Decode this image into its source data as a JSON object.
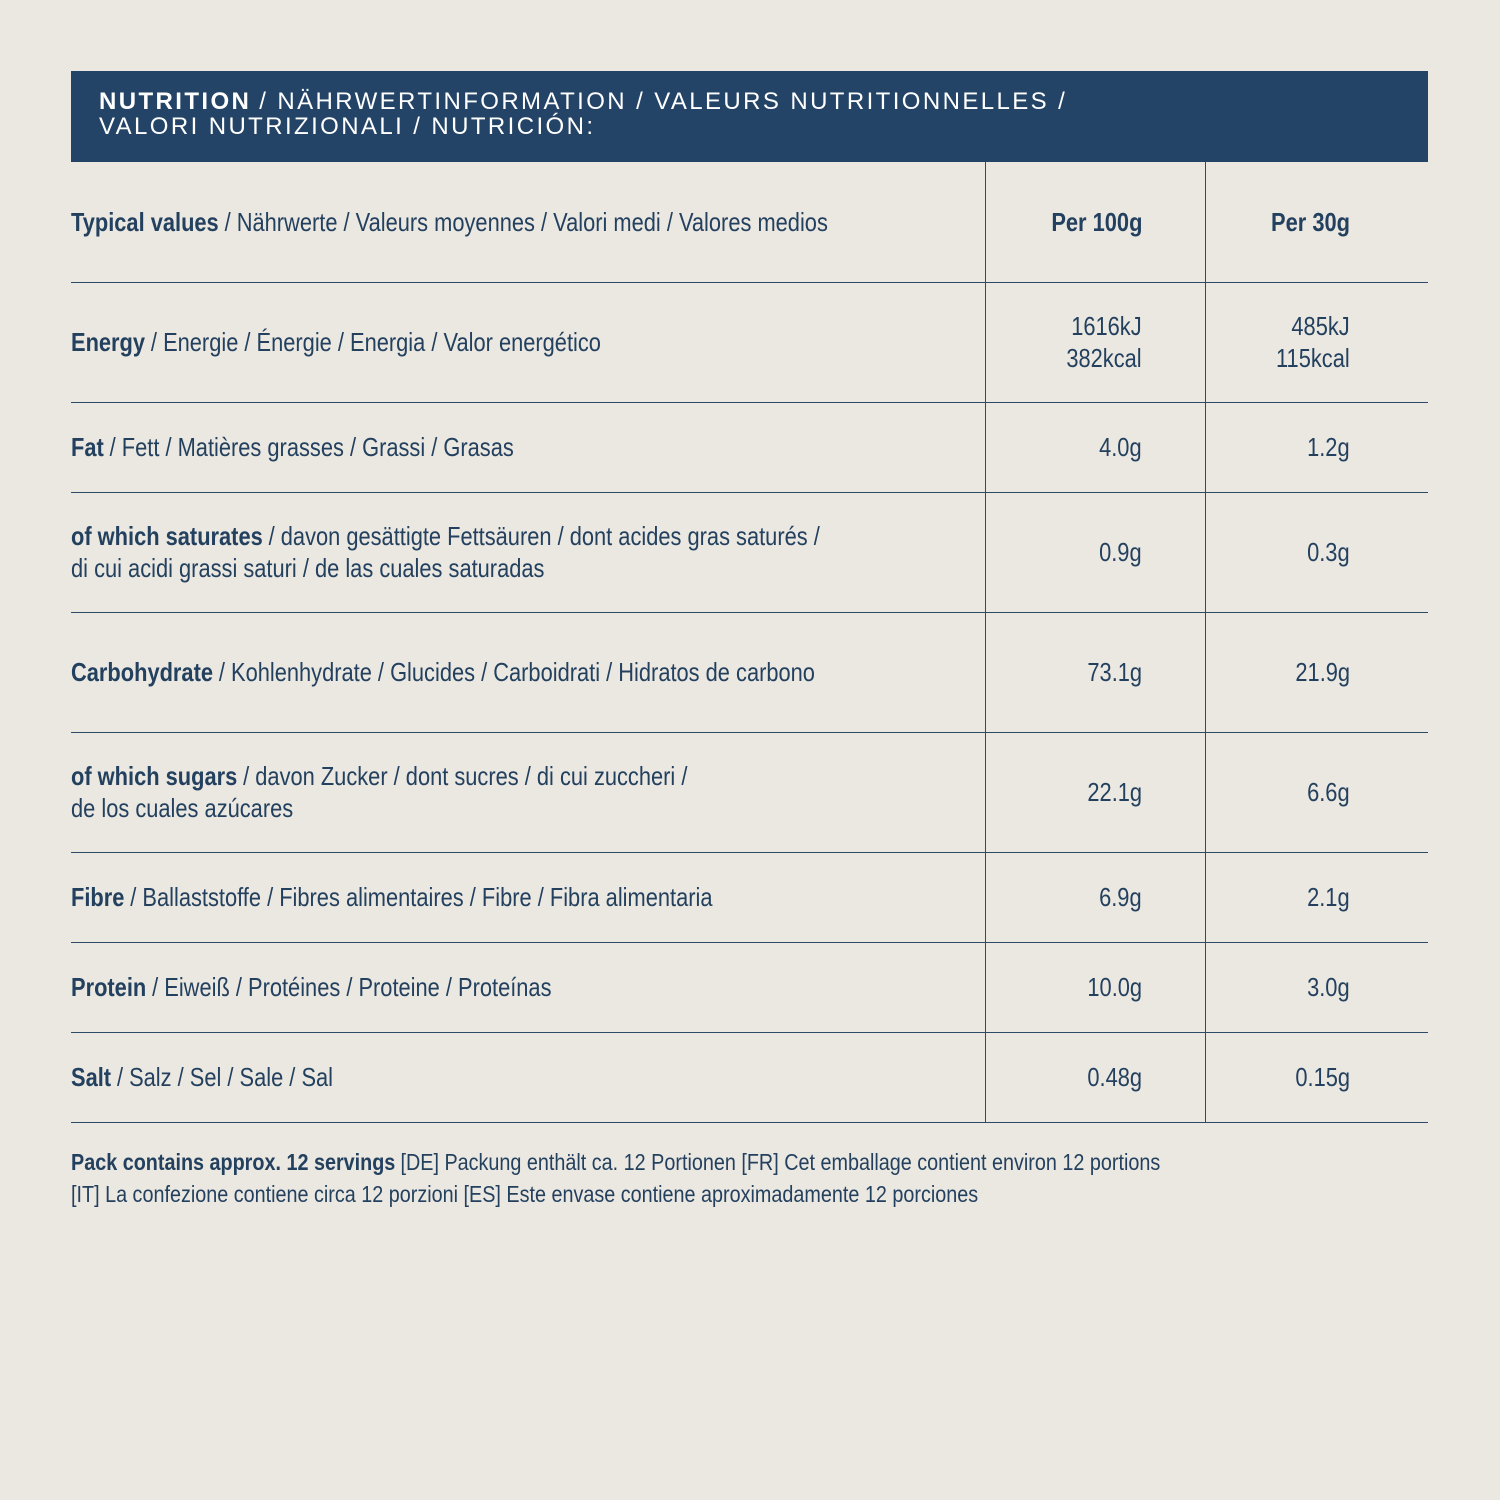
{
  "header": {
    "title_bold": "NUTRITION",
    "title_rest": "/ NÄHRWERTINFORMATION / VALEURS NUTRITIONNELLES /",
    "title_line2": "VALORI NUTRIZIONALI / NUTRICIÓN:"
  },
  "table": {
    "head": {
      "bold": "Typical values",
      "rest": [
        "/ Nährwerte / Valeurs moyennes / Valori medi / Valores medios"
      ],
      "per100g": [
        "Per 100g"
      ],
      "per30g": [
        "Per 30g"
      ]
    },
    "rows": [
      {
        "bold": "Energy",
        "rest": [
          "/ Energie / Énergie / Energia / Valor energético"
        ],
        "per100g": [
          "1616kJ",
          "382kcal"
        ],
        "per30g": [
          "485kJ",
          "115kcal"
        ]
      },
      {
        "bold": "Fat",
        "rest": [
          "/ Fett / Matières grasses / Grassi / Grasas"
        ],
        "per100g": [
          "4.0g"
        ],
        "per30g": [
          "1.2g"
        ]
      },
      {
        "bold": "of which saturates",
        "rest": [
          "/ davon gesättigte Fettsäuren / dont acides gras saturés /",
          "di cui acidi grassi saturi / de las cuales saturadas"
        ],
        "per100g": [
          "0.9g"
        ],
        "per30g": [
          "0.3g"
        ]
      },
      {
        "bold": "Carbohydrate",
        "rest": [
          "/ Kohlenhydrate / Glucides / Carboidrati / Hidratos de carbono"
        ],
        "per100g": [
          "73.1g"
        ],
        "per30g": [
          "21.9g"
        ]
      },
      {
        "bold": "of which sugars",
        "rest": [
          "/ davon Zucker / dont sucres / di cui zuccheri /",
          "de los cuales azúcares"
        ],
        "per100g": [
          "22.1g"
        ],
        "per30g": [
          "6.6g"
        ]
      },
      {
        "bold": "Fibre",
        "rest": [
          "/ Ballaststoffe / Fibres alimentaires / Fibre / Fibra alimentaria"
        ],
        "per100g": [
          "6.9g"
        ],
        "per30g": [
          "2.1g"
        ]
      },
      {
        "bold": "Protein",
        "rest": [
          "/ Eiweiß / Protéines / Proteine / Proteínas"
        ],
        "per100g": [
          "10.0g"
        ],
        "per30g": [
          "3.0g"
        ]
      },
      {
        "bold": "Salt",
        "rest": [
          "/ Salz / Sel / Sale / Sal"
        ],
        "per100g": [
          "0.48g"
        ],
        "per30g": [
          "0.15g"
        ]
      }
    ]
  },
  "footer": {
    "bold": "Pack contains approx. 12 servings",
    "rest": "[DE] Packung enthält ca. 12 Portionen [FR] Cet emballage contient environ 12 portions",
    "line2": "[IT] La confezione contiene circa 12 porzioni [ES] Este envase contiene aproximadamente 12 porciones"
  }
}
